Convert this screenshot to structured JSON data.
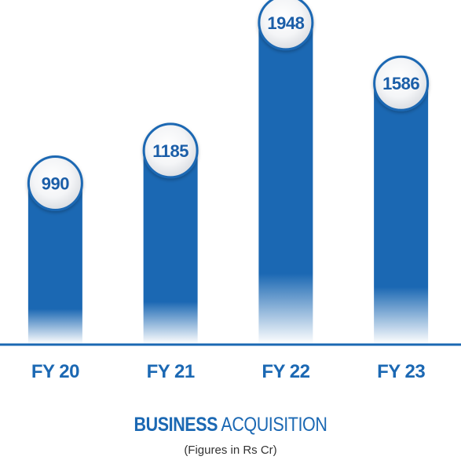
{
  "chart_data": {
    "type": "bar",
    "categories": [
      "FY 20",
      "FY 21",
      "FY 22",
      "FY 23"
    ],
    "values": [
      990,
      1185,
      1948,
      1586
    ],
    "value_labels": [
      "990",
      "1185",
      "1948",
      "1586"
    ],
    "title": {
      "bold": "BUSINESS",
      "regular": "ACQUISITION"
    },
    "subtitle": "(Figures in Rs Cr)",
    "xlabel": "",
    "ylabel": "",
    "grid": false,
    "legend": "none",
    "colors": {
      "bar": "#1b68b3",
      "bar_fade": "#ffffff",
      "axis": "#1b68b3",
      "bubble_ring": "#1b68b3",
      "label": "#1b5ea8"
    }
  }
}
